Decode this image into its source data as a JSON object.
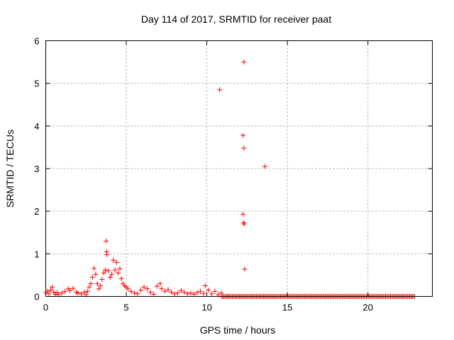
{
  "chart_data": {
    "type": "scatter",
    "title": "Day 114 of 2017, SRMTID for receiver paat",
    "xlabel": "GPS time / hours",
    "ylabel": "SRMTID / TECUs",
    "xlim": [
      0,
      24
    ],
    "ylim": [
      0,
      6
    ],
    "xticks": [
      0,
      5,
      10,
      15,
      20
    ],
    "yticks": [
      0,
      1,
      2,
      3,
      4,
      5,
      6
    ],
    "grid": true,
    "marker": "+",
    "series": [
      {
        "name": "SRMTID",
        "color": "#ff0000",
        "points": [
          [
            0.0,
            0.08
          ],
          [
            0.1,
            0.12
          ],
          [
            0.2,
            0.06
          ],
          [
            0.3,
            0.15
          ],
          [
            0.4,
            0.22
          ],
          [
            0.5,
            0.1
          ],
          [
            0.6,
            0.05
          ],
          [
            0.7,
            0.09
          ],
          [
            0.8,
            0.04
          ],
          [
            1.0,
            0.08
          ],
          [
            1.2,
            0.12
          ],
          [
            1.4,
            0.18
          ],
          [
            1.5,
            0.14
          ],
          [
            1.7,
            0.19
          ],
          [
            1.9,
            0.1
          ],
          [
            2.0,
            0.08
          ],
          [
            2.2,
            0.06
          ],
          [
            2.4,
            0.1
          ],
          [
            2.5,
            0.04
          ],
          [
            2.6,
            0.12
          ],
          [
            2.7,
            0.22
          ],
          [
            2.8,
            0.3
          ],
          [
            2.9,
            0.45
          ],
          [
            3.0,
            0.66
          ],
          [
            3.1,
            0.52
          ],
          [
            3.2,
            0.3
          ],
          [
            3.3,
            0.18
          ],
          [
            3.4,
            0.25
          ],
          [
            3.5,
            0.4
          ],
          [
            3.6,
            0.55
          ],
          [
            3.7,
            0.62
          ],
          [
            3.75,
            1.3
          ],
          [
            3.78,
            1.05
          ],
          [
            3.8,
            0.98
          ],
          [
            3.9,
            0.6
          ],
          [
            4.0,
            0.45
          ],
          [
            4.1,
            0.52
          ],
          [
            4.2,
            0.85
          ],
          [
            4.3,
            0.62
          ],
          [
            4.4,
            0.8
          ],
          [
            4.5,
            0.55
          ],
          [
            4.6,
            0.65
          ],
          [
            4.7,
            0.42
          ],
          [
            4.8,
            0.3
          ],
          [
            4.9,
            0.25
          ],
          [
            5.0,
            0.22
          ],
          [
            5.1,
            0.18
          ],
          [
            5.3,
            0.12
          ],
          [
            5.5,
            0.08
          ],
          [
            5.7,
            0.06
          ],
          [
            5.9,
            0.15
          ],
          [
            6.1,
            0.22
          ],
          [
            6.3,
            0.18
          ],
          [
            6.5,
            0.1
          ],
          [
            6.7,
            0.05
          ],
          [
            6.9,
            0.24
          ],
          [
            7.1,
            0.3
          ],
          [
            7.2,
            0.18
          ],
          [
            7.4,
            0.12
          ],
          [
            7.6,
            0.16
          ],
          [
            7.8,
            0.1
          ],
          [
            8.0,
            0.06
          ],
          [
            8.2,
            0.08
          ],
          [
            8.4,
            0.14
          ],
          [
            8.6,
            0.1
          ],
          [
            8.8,
            0.06
          ],
          [
            9.0,
            0.08
          ],
          [
            9.2,
            0.05
          ],
          [
            9.4,
            0.09
          ],
          [
            9.6,
            0.12
          ],
          [
            9.8,
            0.07
          ],
          [
            9.9,
            0.25
          ],
          [
            10.1,
            0.15
          ],
          [
            10.3,
            0.06
          ],
          [
            10.5,
            0.12
          ],
          [
            10.7,
            0.04
          ],
          [
            10.9,
            0.08
          ],
          [
            10.8,
            4.85
          ],
          [
            12.3,
            5.5
          ],
          [
            12.25,
            3.78
          ],
          [
            12.3,
            3.48
          ],
          [
            13.6,
            3.05
          ],
          [
            12.25,
            1.93
          ],
          [
            12.28,
            1.73
          ],
          [
            12.32,
            1.7
          ],
          [
            12.35,
            0.64
          ]
        ],
        "flat_segment": {
          "x_start": 10.9,
          "x_end": 22.9,
          "y": 0.0
        }
      }
    ]
  }
}
